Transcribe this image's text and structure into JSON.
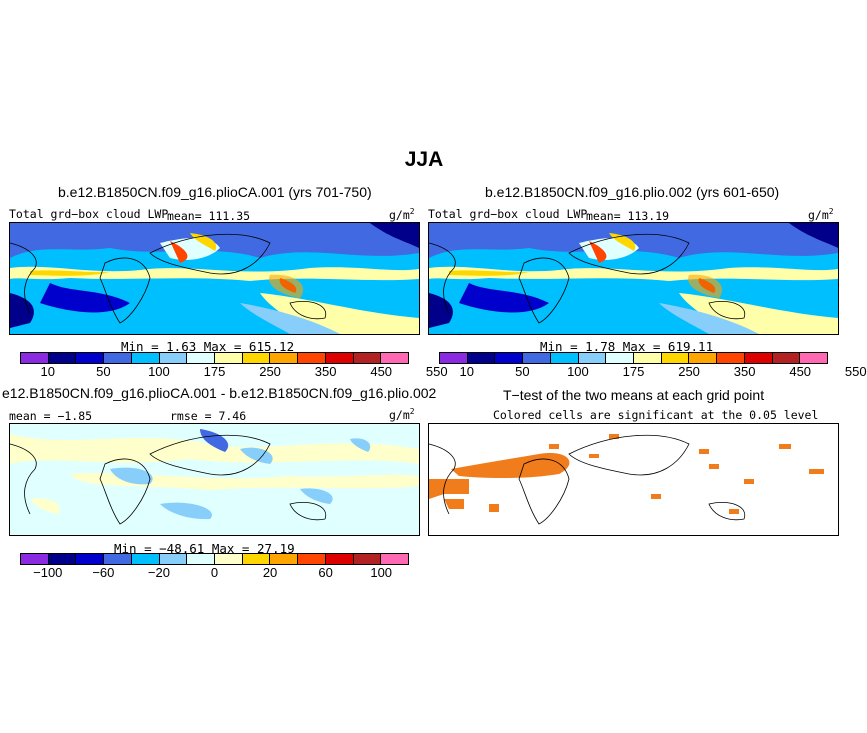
{
  "figure": {
    "season": "JJA",
    "panels": [
      {
        "title": "b.e12.B1850CN.f09_g16.plioCA.001 (yrs 701-750)",
        "left_label": "Total grd−box cloud LWP",
        "mean_label": "mean= 111.35",
        "units": "g/m",
        "units_sup": "2",
        "minmax": "Min =   1.63 Max = 615.12",
        "ticks": [
          "10",
          "50",
          "100",
          "175",
          "250",
          "350",
          "450",
          "550"
        ]
      },
      {
        "title": "b.e12.B1850CN.f09_g16.plio.002 (yrs 601-650)",
        "left_label": "Total grd−box cloud LWP",
        "mean_label": "mean= 113.19",
        "units": "g/m",
        "units_sup": "2",
        "minmax": "Min =   1.78 Max = 619.11",
        "ticks": [
          "10",
          "50",
          "100",
          "175",
          "250",
          "350",
          "450",
          "550"
        ]
      },
      {
        "title": "e12.B1850CN.f09_g16.plioCA.001 - b.e12.B1850CN.f09_g16.plio.002",
        "left_label": "mean = −1.85",
        "rmse_label": "rmse =  7.46",
        "units": "g/m",
        "units_sup": "2",
        "minmax": "Min = −48.61 Max =  27.19",
        "ticks": [
          "−100",
          "−60",
          "−20",
          "0",
          "20",
          "60",
          "100"
        ]
      },
      {
        "title": "T−test of the two means at each grid point",
        "subtitle": "Colored cells are significant at the 0.05 level"
      }
    ],
    "abs_colors": [
      "#8a2be2",
      "#00008b",
      "#0000cd",
      "#4169e1",
      "#00bfff",
      "#87cefa",
      "#e0ffff",
      "#ffffaa",
      "#ffd700",
      "#ffa500",
      "#ff4500",
      "#dc0000",
      "#b22222",
      "#ff69b4"
    ],
    "diff_colors": [
      "#8a2be2",
      "#00008b",
      "#0000cd",
      "#4169e1",
      "#00bfff",
      "#87cefa",
      "#e0ffff",
      "#ffffcc",
      "#ffd700",
      "#ffa500",
      "#ff4500",
      "#dc0000",
      "#b22222",
      "#ff69b4"
    ],
    "signif_color": "#f07c1c"
  }
}
